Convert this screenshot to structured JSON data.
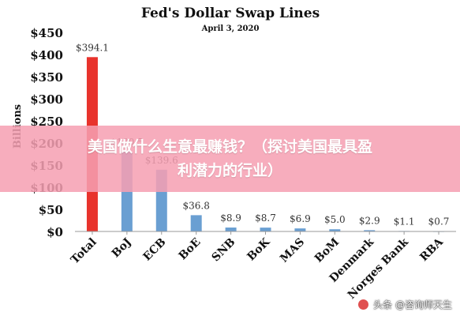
{
  "chart_data": {
    "type": "bar",
    "title": "Fed's Dollar Swap Lines",
    "subtitle": "April 3, 2020",
    "ylabel": "Billions",
    "xlabel": "",
    "ylim": [
      0,
      450
    ],
    "yticks": [
      "$0",
      "$50",
      "$100",
      "$150",
      "$200",
      "$250",
      "$300",
      "$350",
      "$400",
      "$450"
    ],
    "yticks_values": [
      0,
      50,
      100,
      150,
      200,
      250,
      300,
      350,
      400,
      450
    ],
    "categories": [
      "Total",
      "BoJ",
      "ECB",
      "BoE",
      "SNB",
      "BoK",
      "MAS",
      "BoM",
      "Denmark",
      "Norges Bank",
      "RBA"
    ],
    "values": [
      394.1,
      180.5,
      139.6,
      36.8,
      8.9,
      8.7,
      6.9,
      5.0,
      2.9,
      1.1,
      0.7
    ],
    "data_labels": [
      "$394.1",
      "$180.5",
      "$139.6",
      "$36.8",
      "$8.9",
      "$8.7",
      "$6.9",
      "$5.0",
      "$2.9",
      "$1.1",
      "$0.7"
    ],
    "bar_colors": [
      "#e8332c",
      "#6a9fd2",
      "#6a9fd2",
      "#6a9fd2",
      "#6a9fd2",
      "#6a9fd2",
      "#6a9fd2",
      "#6a9fd2",
      "#6a9fd2",
      "#6a9fd2",
      "#6a9fd2"
    ],
    "grid": false,
    "legend": "none"
  },
  "overlay": {
    "line1": "美国做什么生意最赚钱？（探讨美国最具盈",
    "line2": "利潜力的行业）"
  },
  "watermark": {
    "text": "头条 @咨询师天生"
  }
}
